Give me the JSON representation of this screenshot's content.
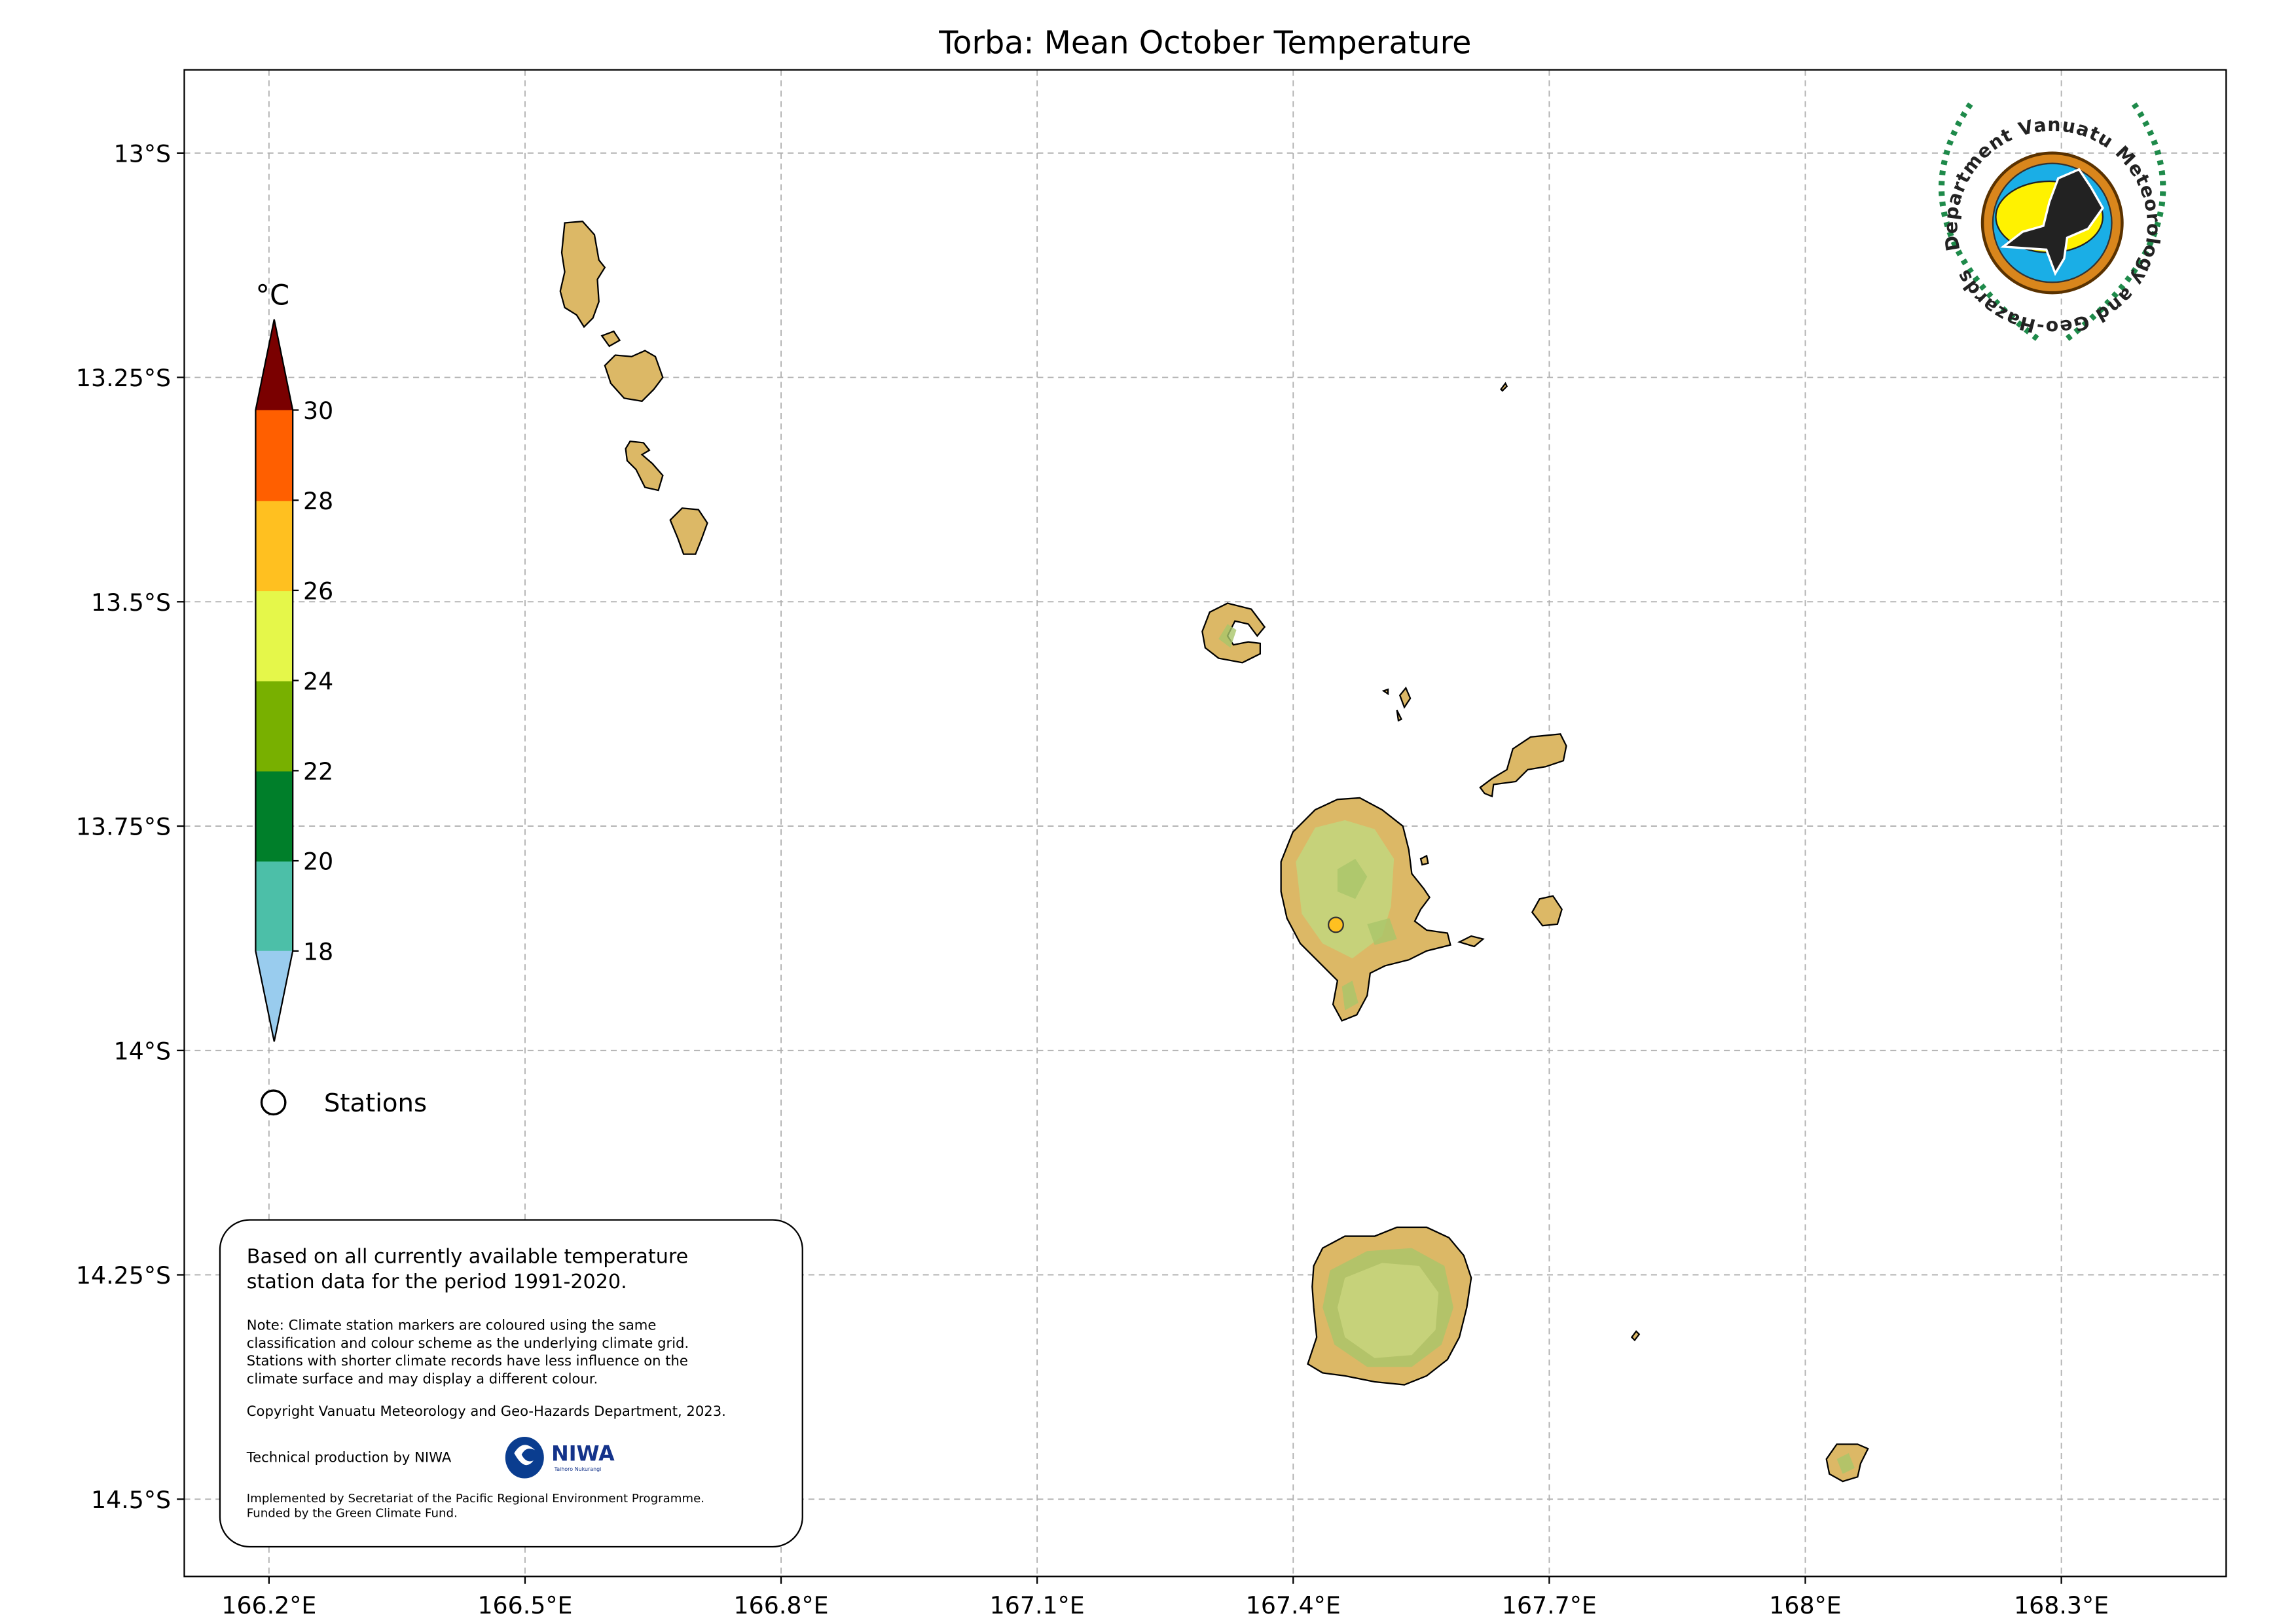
{
  "title": "Torba: Mean October Temperature",
  "chart_data": {
    "type": "map",
    "lon_ticks": [
      166.2,
      166.5,
      166.8,
      167.1,
      167.4,
      167.7,
      168.0,
      168.3
    ],
    "lon_tick_labels": [
      "166.2°E",
      "166.5°E",
      "166.8°E",
      "167.1°E",
      "167.4°E",
      "167.7°E",
      "168°E",
      "168.3°E"
    ],
    "lat_ticks": [
      13.0,
      13.25,
      13.5,
      13.75,
      14.0,
      14.25,
      14.5
    ],
    "lat_tick_labels": [
      "13°S",
      "13.25°S",
      "13.5°S",
      "13.75°S",
      "14°S",
      "14.25°S",
      "14.5°S"
    ],
    "lon_range": [
      166.1,
      168.5
    ],
    "lat_range_south": [
      12.91,
      14.59
    ],
    "grid": true,
    "colorbar": {
      "unit": "°C",
      "bounds": [
        18,
        20,
        22,
        24,
        26,
        28,
        30
      ],
      "tick_labels": [
        "30",
        "28",
        "26",
        "24",
        "22",
        "20",
        "18"
      ],
      "colors": [
        "#99ccee",
        "#4cbfa8",
        "#007f2a",
        "#78b000",
        "#e5f74a",
        "#ffc020",
        "#ff5f00",
        "#7a0000"
      ],
      "extend": "both"
    },
    "stations": [
      {
        "lon": 167.45,
        "lat": 13.86,
        "color": "#ffc020"
      }
    ],
    "legend": {
      "stations_label": "Stations"
    }
  },
  "info_box": {
    "main": [
      "Based on all currently available temperature",
      "station data for the period 1991-2020."
    ],
    "note": [
      "Note: Climate station markers are coloured using the same",
      "classification and colour scheme as the underlying climate grid.",
      "Stations with shorter climate records have less influence on the",
      "climate surface and may display a different colour."
    ],
    "copyright": "Copyright Vanuatu Meteorology and Geo-Hazards Department, 2023.",
    "technical": "Technical production by NIWA",
    "niwa_logo": "NIWA",
    "niwa_sub": "Taihoro Nukurangi",
    "implemented": [
      "Implemented by Secretariat of the Pacific Regional Environment Programme.",
      "Funded by the Green Climate Fund."
    ]
  },
  "logo": {
    "text": "Department Vanuatu Meteorology and Geo-Hazards"
  }
}
